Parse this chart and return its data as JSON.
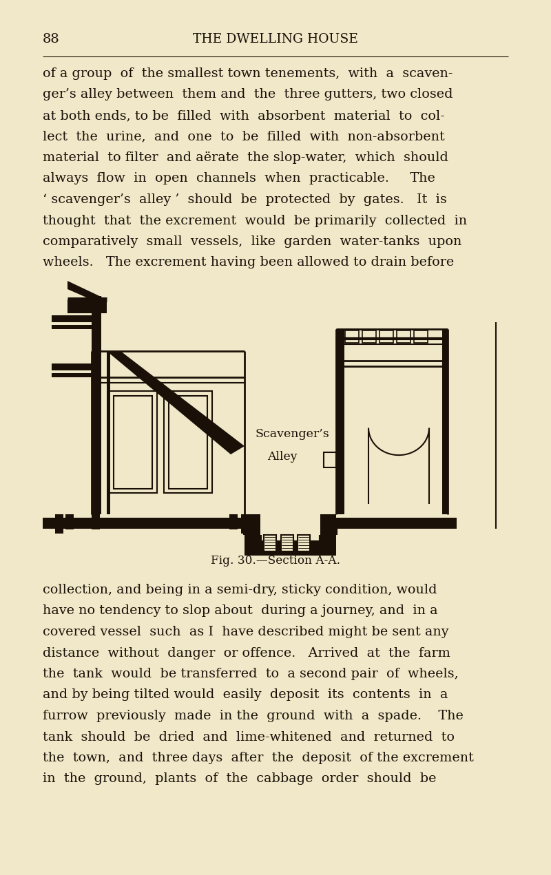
{
  "background_color": "#f0e8c8",
  "text_color": "#1a1008",
  "page_number": "88",
  "header_title": "THE DWELLING HOUSE",
  "para1_lines": [
    "of a group  of  the smallest town tenements,  with  a  scaven-",
    "ger’s alley between  them and  the  three gutters, two closed",
    "at both ends, to be  filled  with  absorbent  material  to  col-",
    "lect  the  urine,  and  one  to  be  filled  with  non-absorbent",
    "material  to filter  and aërate  the slop-water,  which  should",
    "always  flow  in  open  channels  when  practicable.     The",
    "‘ scavenger’s  alley ’  should  be  protected  by  gates.   It  is",
    "thought  that  the excrement  would  be primarily  collected  in",
    "comparatively  small  vessels,  like  garden  water-tanks  upon",
    "wheels.   The excrement having been allowed to drain before"
  ],
  "caption": "Fig. 30.—Section A-A.",
  "para2_lines": [
    "collection, and being in a semi-dry, sticky condition, would",
    "have no tendency to slop about  during a journey, and  in a",
    "covered vessel  such  as I  have described might be sent any",
    "distance  without  danger  or offence.   Arrived  at  the  farm",
    "the  tank  would  be transferred  to  a second pair  of  wheels,",
    "and by being tilted would  easily  deposit  its  contents  in  a",
    "furrow  previously  made  in the  ground  with  a  spade.    The",
    "tank  should  be  dried  and  lime-whitened  and  returned  to",
    "the  town,  and  three days  after  the  deposit  of the excrement",
    "in  the  ground,  plants  of  the  cabbage  order  should  be"
  ],
  "label1": "Scavenger’s",
  "label2": "Alley",
  "line_color": "#1a1008"
}
